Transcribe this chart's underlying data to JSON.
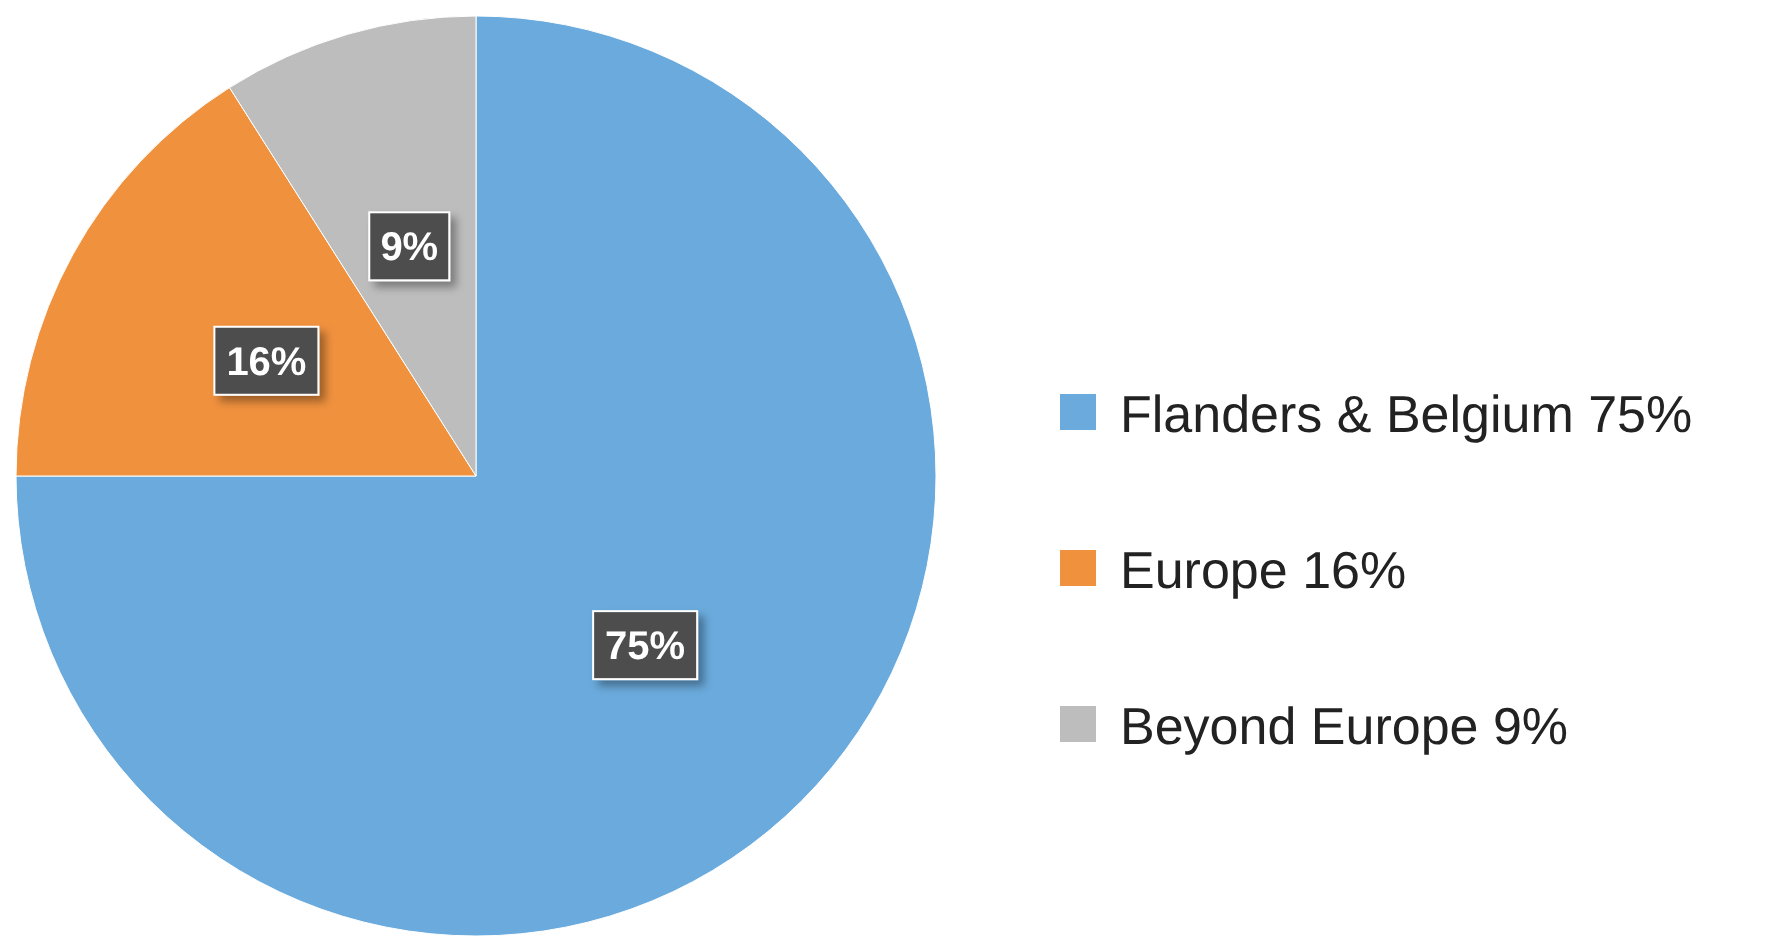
{
  "chart_data": {
    "type": "pie",
    "categories": [
      "Flanders & Belgium 75%",
      "Europe 16%",
      "Beyond Europe 9%"
    ],
    "values": [
      75,
      16,
      9
    ],
    "colors": [
      "#6aaadc",
      "#f0913e",
      "#bdbdbd"
    ],
    "value_labels": [
      "75%",
      "16%",
      "9%"
    ],
    "legend": "right"
  }
}
